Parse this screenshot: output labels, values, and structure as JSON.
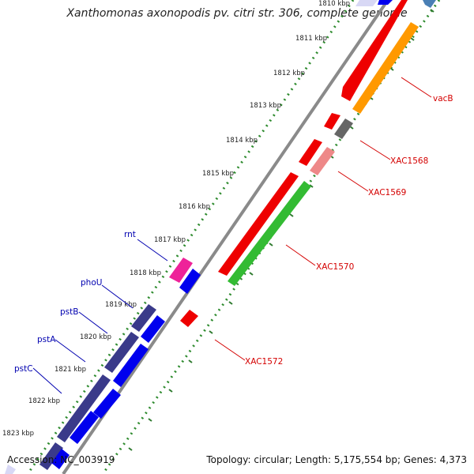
{
  "title": "Xanthomonas axonopodis pv. citri str. 306, complete genome",
  "footer": {
    "accession": "Accession: NC_003919",
    "summary": "Topology: circular; Length: 5,175,554 bp; Genes: 4,373"
  },
  "colors": {
    "backbone": "#8a8a8a",
    "tick_dots": "#2e8b2e",
    "label_red": "#d40000",
    "label_blue": "#0000b0",
    "reverse_gene_label": "#d40000",
    "forward_gene_label": "#0000b0"
  },
  "ticks": [
    "1810 kbp",
    "1811 kbp",
    "1812 kbp",
    "1813 kbp",
    "1814 kbp",
    "1815 kbp",
    "1816 kbp",
    "1817 kbp",
    "1818 kbp",
    "1819 kbp",
    "1820 kbp",
    "1821 kbp",
    "1822 kbp",
    "1823 kbp"
  ],
  "features": [
    {
      "name": "vacB",
      "color": "#ff9900",
      "strand": "forward-outer"
    },
    {
      "name": "XAC1568",
      "color": "#666666",
      "strand": "forward-outer"
    },
    {
      "name": "XAC1569",
      "color": "#ee8888",
      "strand": "forward-outer"
    },
    {
      "name": "XAC1570",
      "color": "#33bb33",
      "strand": "forward-outer"
    },
    {
      "name": "XAC1572",
      "color": "#ee0000",
      "strand": "reverse-outer"
    },
    {
      "name": "rnt",
      "color": "#ee2299",
      "strand": "inner"
    },
    {
      "name": "phoU",
      "color": "#3a3a8a",
      "strand": "inner"
    },
    {
      "name": "pstB",
      "color": "#3a3a8a",
      "strand": "inner"
    },
    {
      "name": "pstA",
      "color": "#3a3a8a",
      "strand": "inner"
    },
    {
      "name": "pstC",
      "color": "#3a3a8a",
      "strand": "inner"
    }
  ]
}
